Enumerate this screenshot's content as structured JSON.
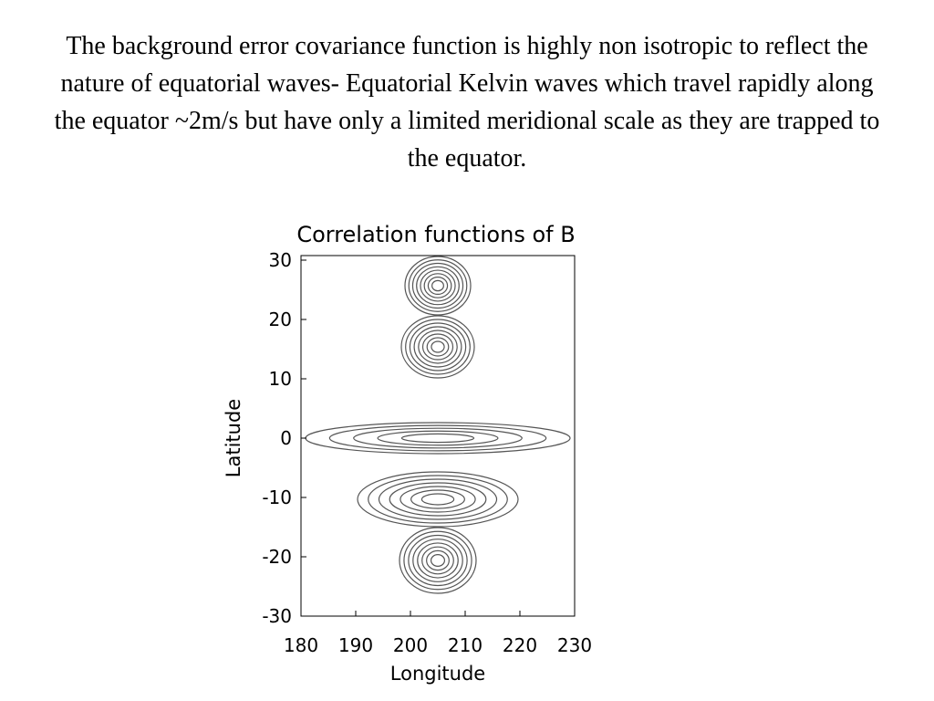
{
  "paragraph": "The background error covariance function is highly non isotropic to reflect the nature of equatorial waves- Equatorial Kelvin waves which travel rapidly along the equator ~2m/s but have only a limited meridional scale as they are trapped to the equator.",
  "figure": {
    "title": "Correlation functions of B",
    "x_label": "Longitude",
    "y_label": "Latitude",
    "xlim": [
      180,
      230
    ],
    "ylim": [
      -30,
      30
    ],
    "xticks": [
      180,
      190,
      200,
      210,
      220,
      230
    ],
    "yticks": [
      30,
      20,
      10,
      0,
      -10,
      -20,
      -30
    ]
  }
}
